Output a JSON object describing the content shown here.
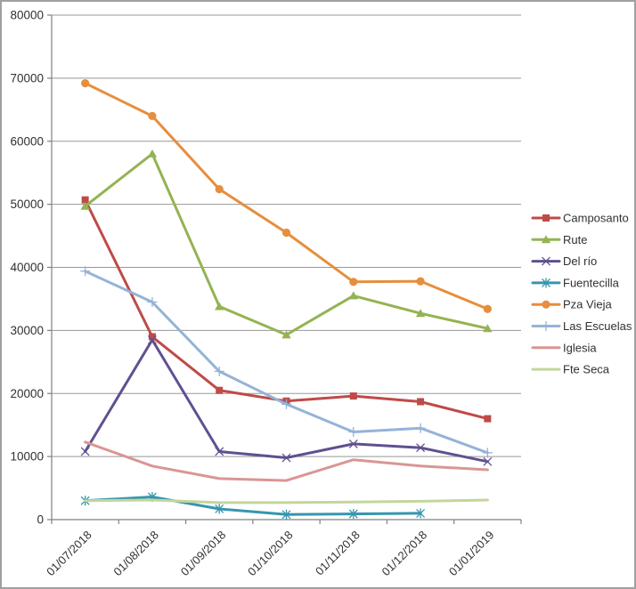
{
  "window": {
    "background_color": "#FFFFFF",
    "frame_border_color": "#A0A0A0"
  },
  "chart_data": {
    "type": "line",
    "title": "",
    "xlabel": "",
    "ylabel": "",
    "grid": true,
    "legend_position": "right",
    "ylim": [
      0,
      80000
    ],
    "ytick_step": 10000,
    "ytick_labels": [
      "0",
      "10000",
      "20000",
      "30000",
      "40000",
      "50000",
      "60000",
      "70000",
      "80000"
    ],
    "categories": [
      "01/07/2018",
      "01/08/2018",
      "01/09/2018",
      "01/10/2018",
      "01/11/2018",
      "01/12/2018",
      "01/01/2019"
    ],
    "series": [
      {
        "name": "Camposanto",
        "color": "#BE4B48",
        "marker": "square",
        "values": [
          50700,
          29000,
          20500,
          18800,
          19600,
          18700,
          16000
        ]
      },
      {
        "name": "Rute",
        "color": "#94B353",
        "marker": "triangle",
        "values": [
          49700,
          58000,
          33800,
          29300,
          35500,
          32700,
          30300
        ]
      },
      {
        "name": "Del río",
        "color": "#605090",
        "marker": "x",
        "values": [
          10800,
          28500,
          10800,
          9800,
          12000,
          11400,
          9200
        ]
      },
      {
        "name": "Fuentecilla",
        "color": "#3596B0",
        "marker": "star",
        "values": [
          3000,
          3600,
          1700,
          800,
          900,
          1000,
          null
        ]
      },
      {
        "name": "Pza Vieja",
        "color": "#E68E3D",
        "marker": "circle",
        "values": [
          69200,
          64000,
          52400,
          45500,
          37700,
          37800,
          33400
        ]
      },
      {
        "name": "Las Escuelas",
        "color": "#95B3D7",
        "marker": "plus",
        "values": [
          39400,
          34500,
          23500,
          18300,
          13900,
          14500,
          10600
        ]
      },
      {
        "name": "Iglesia",
        "color": "#D99694",
        "marker": "none",
        "values": [
          12300,
          8500,
          6500,
          6200,
          9500,
          8500,
          7900
        ]
      },
      {
        "name": "Fte Seca",
        "color": "#C3D69B",
        "marker": "none",
        "values": [
          3000,
          3100,
          2700,
          2700,
          2800,
          2900,
          3100
        ]
      }
    ],
    "style": {
      "gridline_color": "#989898",
      "axis_color": "#808080",
      "tick_label_color": "#303030",
      "line_width": 3
    }
  }
}
